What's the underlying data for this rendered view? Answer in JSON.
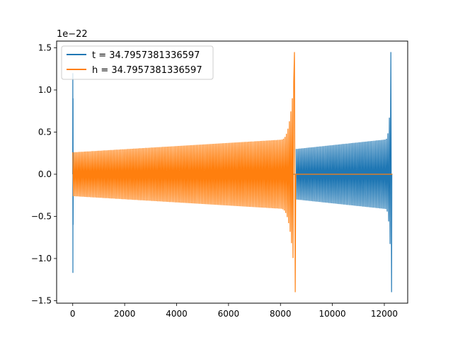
{
  "chart_data": {
    "type": "line",
    "title": "",
    "xlabel": "",
    "ylabel": "",
    "y_offset_text": "1e−22",
    "xlim": [
      -620,
      12900
    ],
    "ylim": [
      -1.53,
      1.58
    ],
    "x_ticks": [
      0,
      2000,
      4000,
      6000,
      8000,
      10000,
      12000
    ],
    "x_tick_labels": [
      "0",
      "2000",
      "4000",
      "6000",
      "8000",
      "10000",
      "12000"
    ],
    "y_ticks": [
      -1.5,
      -1.0,
      -0.5,
      0.0,
      0.5,
      1.0,
      1.5
    ],
    "y_tick_labels": [
      "−1.5",
      "−1.0",
      "−0.5",
      "0.0",
      "0.5",
      "1.0",
      "1.5"
    ],
    "grid": false,
    "legend_position": "top-left",
    "series": [
      {
        "name": "t = 34.7957381336597",
        "color": "#1f77b4",
        "segments": [
          {
            "x_start": 0,
            "x_end": 20,
            "amplitude": 1.2,
            "kind": "burst"
          },
          {
            "x_start": 20,
            "x_end": 8610,
            "amplitude": 0.0,
            "kind": "flat"
          },
          {
            "x_start": 8610,
            "x_end": 12290,
            "amp_start": 0.3,
            "amp_peak": 1.45,
            "amp_min": -1.4,
            "kind": "chirp"
          },
          {
            "x_start": 12290,
            "x_end": 12310,
            "amplitude": 0.0,
            "kind": "flat"
          }
        ]
      },
      {
        "name": "h = 34.7957381336597",
        "color": "#ff7f0e",
        "segments": [
          {
            "x_start": 0,
            "x_end": 8590,
            "amp_start": 0.26,
            "amp_peak": 1.45,
            "amp_min": -1.4,
            "kind": "chirp"
          },
          {
            "x_start": 8590,
            "x_end": 12310,
            "amplitude": 0.0,
            "kind": "flat"
          }
        ]
      }
    ]
  }
}
